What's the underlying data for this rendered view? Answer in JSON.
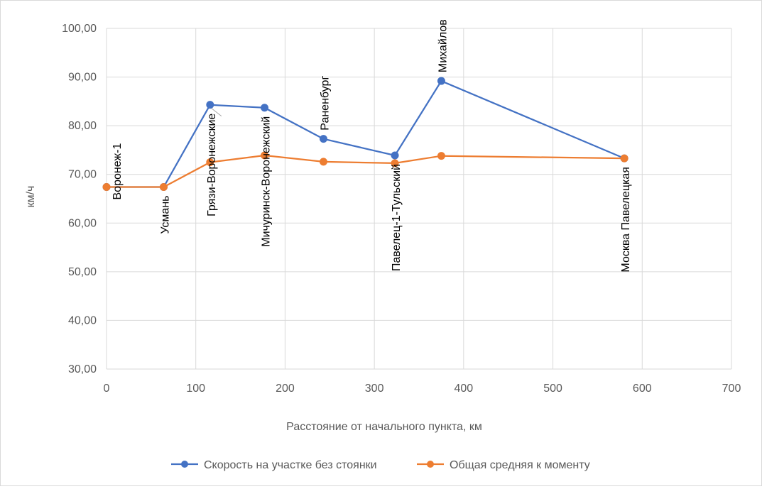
{
  "chart_data": {
    "type": "line",
    "title": "",
    "xlabel": "Расстояние от начального пункта, км",
    "ylabel": "км/ч",
    "xlim": [
      0,
      700
    ],
    "ylim": [
      30,
      100
    ],
    "x_ticks": [
      0,
      100,
      200,
      300,
      400,
      500,
      600,
      700
    ],
    "y_ticks": [
      30,
      40,
      50,
      60,
      70,
      80,
      90,
      100
    ],
    "x_tick_labels": [
      "0",
      "100",
      "200",
      "300",
      "400",
      "500",
      "600",
      "700"
    ],
    "y_tick_labels": [
      "30,00",
      "40,00",
      "50,00",
      "60,00",
      "70,00",
      "80,00",
      "90,00",
      "100,00"
    ],
    "grid": true,
    "legend_position": "bottom",
    "stations": [
      {
        "name": "Воронеж-1",
        "x": 0
      },
      {
        "name": "Усмань",
        "x": 64
      },
      {
        "name": "Грязи-Воронежские",
        "x": 116
      },
      {
        "name": "Мичуринск-Воронежский",
        "x": 177
      },
      {
        "name": "Раненбург",
        "x": 243
      },
      {
        "name": "Павелец-1-Тульский",
        "x": 323
      },
      {
        "name": "Михайлов",
        "x": 375
      },
      {
        "name": "Москва Павелецкая",
        "x": 580
      }
    ],
    "series": [
      {
        "name": "Скорость на участке без стоянки",
        "color": "#4472C4",
        "x": [
          0,
          64,
          116,
          177,
          243,
          323,
          375,
          580
        ],
        "values": [
          67.4,
          67.4,
          84.3,
          83.7,
          77.3,
          73.9,
          89.2,
          73.3
        ]
      },
      {
        "name": "Общая средняя к моменту",
        "color": "#ED7D31",
        "x": [
          0,
          64,
          116,
          177,
          243,
          323,
          375,
          580
        ],
        "values": [
          67.4,
          67.4,
          72.5,
          73.9,
          72.6,
          72.3,
          73.8,
          73.3
        ]
      }
    ]
  }
}
